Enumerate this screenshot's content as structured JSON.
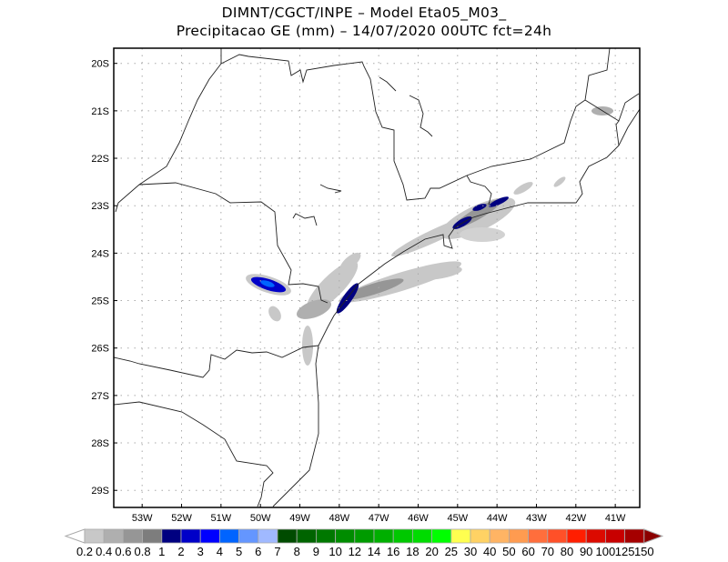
{
  "title": {
    "line1": "DIMNT/CGCT/INPE –   Model Eta05_M03_",
    "line2": "Precipitacao GE (mm) – 14/07/2020 00UTC fct=24h"
  },
  "axes": {
    "lon_values": [
      -53,
      -52,
      -51,
      -50,
      -49,
      -48,
      -47,
      -46,
      -45,
      -44,
      -43,
      -42,
      -41
    ],
    "lon_labels": [
      "53W",
      "52W",
      "51W",
      "50W",
      "49W",
      "48W",
      "47W",
      "46W",
      "45W",
      "44W",
      "43W",
      "42W",
      "41W"
    ],
    "lat_values": [
      -20,
      -21,
      -22,
      -23,
      -24,
      -25,
      -26,
      -27,
      -28,
      -29
    ],
    "lat_labels": [
      "20S",
      "21S",
      "22S",
      "23S",
      "24S",
      "25S",
      "26S",
      "27S",
      "28S",
      "29S"
    ],
    "lon_range": [
      -53.72,
      -40.38
    ],
    "lat_range": [
      -19.68,
      -29.36
    ],
    "grid": "dotted"
  },
  "colorbar": {
    "labels": [
      "0.2",
      "0.4",
      "0.6",
      "0.8",
      "1",
      "2",
      "3",
      "4",
      "5",
      "6",
      "7",
      "8",
      "9",
      "10",
      "12",
      "14",
      "16",
      "18",
      "20",
      "25",
      "30",
      "40",
      "50",
      "60",
      "70",
      "80",
      "90",
      "100",
      "125",
      "150"
    ],
    "colors": [
      "#c8c8c8",
      "#afafaf",
      "#969696",
      "#7d7d7d",
      "#000080",
      "#0000c8",
      "#0000ff",
      "#0064ff",
      "#6496ff",
      "#a0b9ff",
      "#004b00",
      "#006400",
      "#007800",
      "#008c00",
      "#009b00",
      "#00af00",
      "#00c800",
      "#00dc00",
      "#00ff00",
      "#ffff50",
      "#ffd264",
      "#ffb464",
      "#ff9b50",
      "#ff6e3c",
      "#ff5028",
      "#ff1e00",
      "#dc0a00",
      "#c80000",
      "#a50000"
    ],
    "under_color": "#ffffff",
    "over_color": "#8b0000"
  }
}
